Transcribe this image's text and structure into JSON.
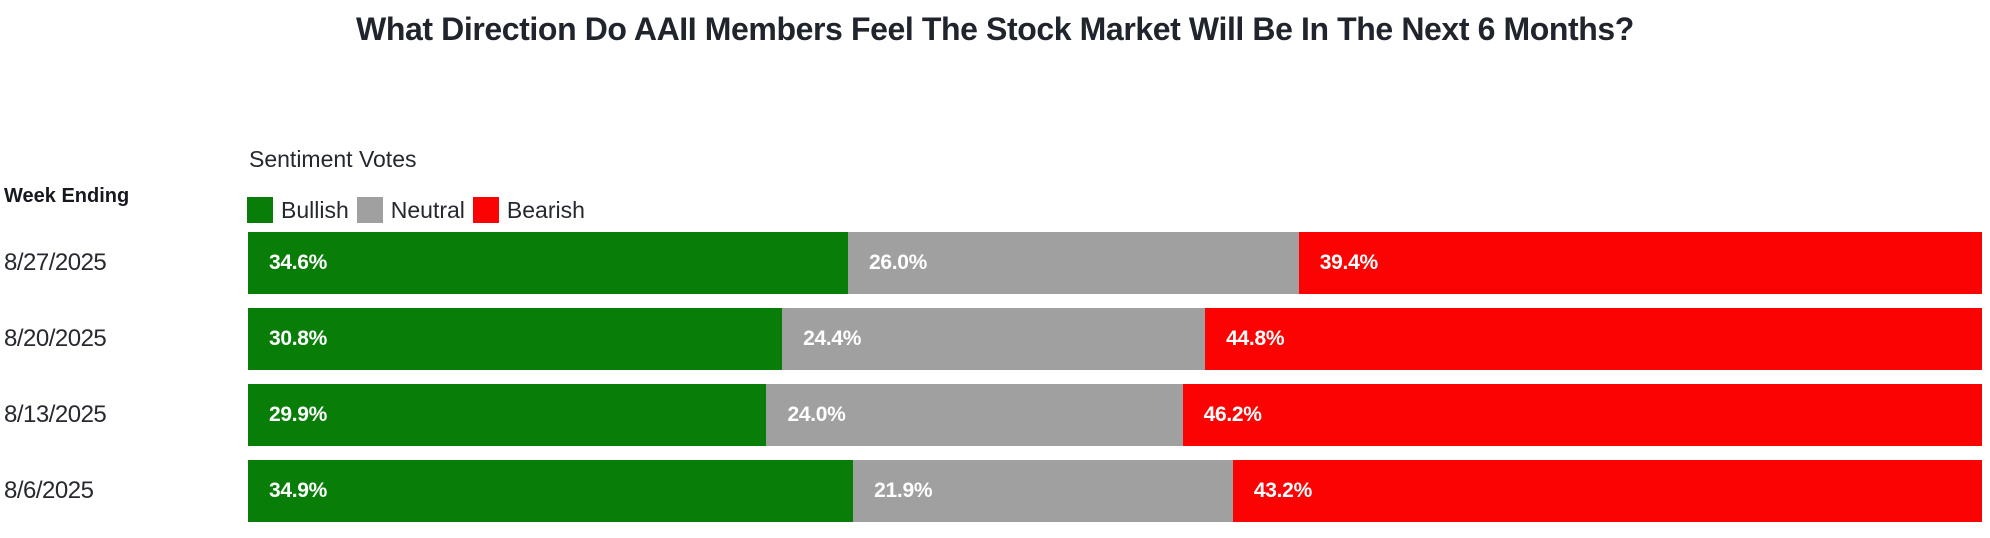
{
  "title": "What Direction Do AAII Members Feel The Stock Market Will Be In The Next 6 Months?",
  "axis": {
    "label": "Week Ending"
  },
  "legend": {
    "title": "Sentiment Votes",
    "items": [
      {
        "label": "Bullish",
        "color": "#087e08"
      },
      {
        "label": "Neutral",
        "color": "#a0a0a0"
      },
      {
        "label": "Bearish",
        "color": "#fb0303"
      }
    ]
  },
  "colors": {
    "bullish": "#087e08",
    "neutral": "#a0a0a0",
    "bearish": "#fb0303",
    "bar_label_text": "#ffffff",
    "title_text": "#20242c"
  },
  "chart_data": {
    "type": "bar",
    "orientation": "horizontal",
    "stacked": true,
    "title": "What Direction Do AAII Members Feel The Stock Market Will Be In The Next 6 Months?",
    "xlabel": "",
    "ylabel": "Week Ending",
    "xlim": [
      0,
      100
    ],
    "grid": false,
    "legend_position": "top-left",
    "legend_title": "Sentiment Votes",
    "categories": [
      "8/27/2025",
      "8/20/2025",
      "8/13/2025",
      "8/6/2025"
    ],
    "series": [
      {
        "name": "Bullish",
        "color": "#087e08",
        "values": [
          34.6,
          30.8,
          29.9,
          34.9
        ],
        "labels": [
          "34.6%",
          "30.8%",
          "29.9%",
          "34.9%"
        ]
      },
      {
        "name": "Neutral",
        "color": "#a0a0a0",
        "values": [
          26.0,
          24.4,
          24.0,
          21.9
        ],
        "labels": [
          "26.0%",
          "24.4%",
          "24.0%",
          "21.9%"
        ]
      },
      {
        "name": "Bearish",
        "color": "#fb0303",
        "values": [
          39.4,
          44.8,
          46.2,
          43.2
        ],
        "labels": [
          "39.4%",
          "44.8%",
          "46.2%",
          "43.2%"
        ]
      }
    ]
  }
}
